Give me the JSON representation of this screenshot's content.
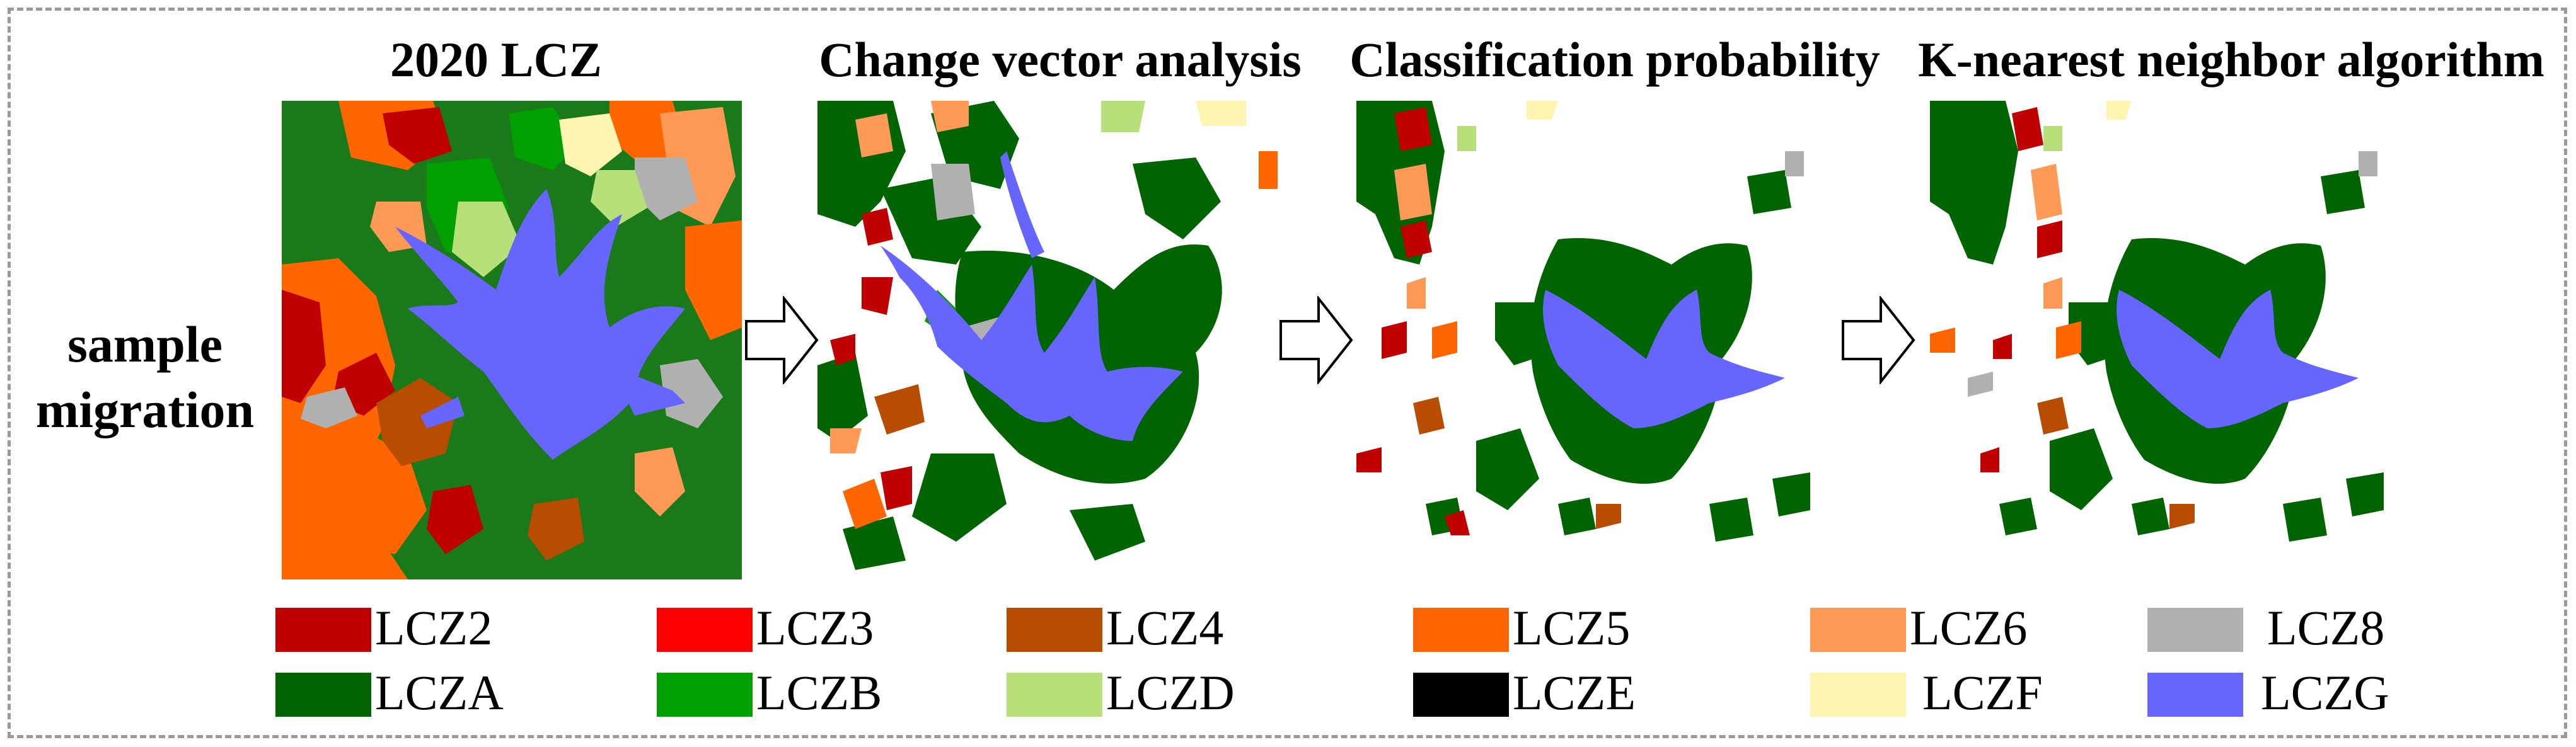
{
  "titles": {
    "panel1": "2020 LCZ",
    "panel2": "Change vector analysis",
    "panel3": "Classification probability",
    "panel4": "K-nearest neighbor algorithm"
  },
  "side_label": {
    "line1": "sample",
    "line2": "migration"
  },
  "colors": {
    "LCZ2": "#c00000",
    "LCZ3": "#ff0000",
    "LCZ4": "#b84c00",
    "LCZ5": "#ff6600",
    "LCZ6": "#ff9955",
    "LCZ8": "#b0b0b0",
    "LCZA": "#006400",
    "LCZB": "#00a000",
    "LCZD": "#b8e07a",
    "LCZE": "#000000",
    "LCZF": "#fff5b0",
    "LCZG": "#6666ff"
  },
  "legend": [
    {
      "label": "LCZ2",
      "color": "#c00000"
    },
    {
      "label": "LCZ3",
      "color": "#ff0000"
    },
    {
      "label": "LCZ4",
      "color": "#b84c00"
    },
    {
      "label": "LCZ5",
      "color": "#ff6600"
    },
    {
      "label": "LCZ6",
      "color": "#ff9955"
    },
    {
      "label": "LCZ8",
      "color": "#b0b0b0"
    },
    {
      "label": "LCZA",
      "color": "#006400"
    },
    {
      "label": "LCZB",
      "color": "#00a000"
    },
    {
      "label": "LCZD",
      "color": "#b8e07a"
    },
    {
      "label": "LCZE",
      "color": "#000000"
    },
    {
      "label": "LCZF",
      "color": "#fff5b0"
    },
    {
      "label": "LCZG",
      "color": "#6666ff"
    }
  ]
}
